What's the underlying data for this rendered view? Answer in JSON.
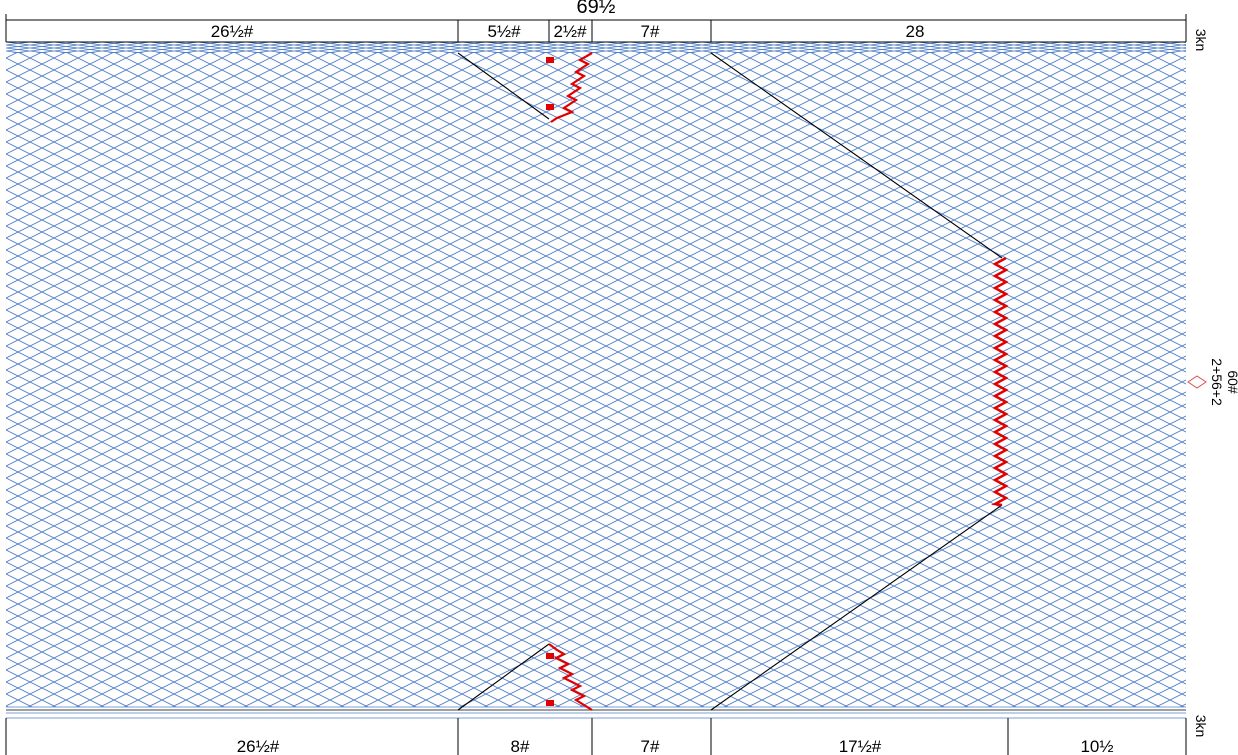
{
  "diagram": {
    "total_width_label": "69½",
    "top_segments": [
      "26½#",
      "5½#",
      "2½#",
      "7#",
      "28"
    ],
    "bottom_segments": [
      "26½#",
      "8#",
      "7#",
      "17½#",
      "10½"
    ],
    "right_top_label": "3kn",
    "right_bottom_label": "3kn",
    "right_mid_label_1": "2+56+2",
    "right_mid_label_2": "60#",
    "colors": {
      "mesh": "#4f7fc7",
      "outline": "#000000",
      "accent": "#e00000"
    }
  }
}
